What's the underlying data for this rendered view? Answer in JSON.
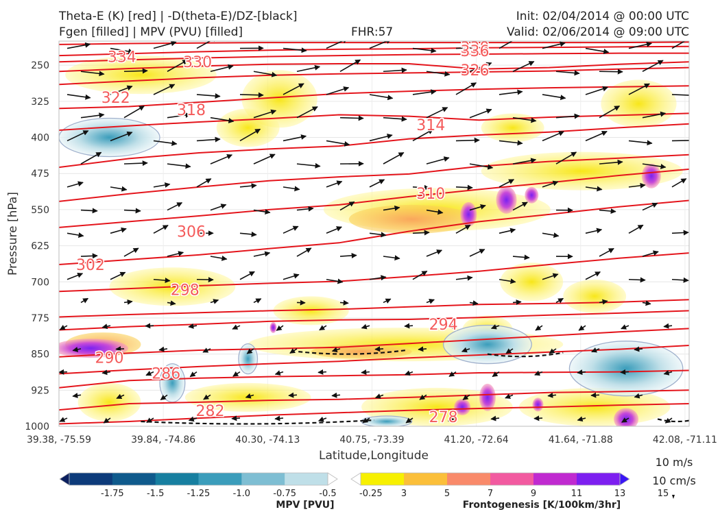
{
  "header": {
    "title_left_1": "Theta-E (K) [red] | -D(theta-E)/DZ-[black]",
    "title_left_2": "Fgen [filled] | MPV (PVU) [filled]",
    "title_center": "FHR:57",
    "title_right_1": "Init: 02/04/2014 @ 00:00 UTC",
    "title_right_2": "Valid: 02/06/2014 @ 09:00 UTC"
  },
  "chart_data": {
    "type": "cross-section",
    "xlabel": "Latitude,Longitude",
    "ylabel": "Pressure [hPa]",
    "ylim": [
      1000,
      200
    ],
    "grid": true,
    "y_ticks": [
      250,
      325,
      400,
      475,
      550,
      625,
      700,
      775,
      850,
      925,
      1000
    ],
    "x_ticks": [
      "39.38, -75.59",
      "39.84, -74.86",
      "40.30, -74.13",
      "40.75, -73.39",
      "41.20, -72.64",
      "41.64, -71.88",
      "42.08, -71.11"
    ],
    "theta_e_labels": [
      {
        "text": "334",
        "x": 0.1,
        "y": 232
      },
      {
        "text": "330",
        "x": 0.22,
        "y": 243
      },
      {
        "text": "322",
        "x": 0.09,
        "y": 317
      },
      {
        "text": "318",
        "x": 0.21,
        "y": 342
      },
      {
        "text": "306",
        "x": 0.21,
        "y": 595
      },
      {
        "text": "302",
        "x": 0.05,
        "y": 664
      },
      {
        "text": "298",
        "x": 0.2,
        "y": 716
      },
      {
        "text": "290",
        "x": 0.08,
        "y": 857
      },
      {
        "text": "286",
        "x": 0.17,
        "y": 890
      },
      {
        "text": "282",
        "x": 0.24,
        "y": 967
      },
      {
        "text": "338",
        "x": 0.66,
        "y": 213
      },
      {
        "text": "336",
        "x": 0.66,
        "y": 220
      },
      {
        "text": "326",
        "x": 0.66,
        "y": 260
      },
      {
        "text": "314",
        "x": 0.59,
        "y": 374
      },
      {
        "text": "310",
        "x": 0.59,
        "y": 516
      },
      {
        "text": "294",
        "x": 0.61,
        "y": 788
      },
      {
        "text": "278",
        "x": 0.61,
        "y": 980
      }
    ],
    "theta_e_lines": [
      {
        "value": 338,
        "p": [
          207,
          205,
          204,
          203,
          203,
          203,
          203,
          203,
          203,
          202
        ]
      },
      {
        "value": 334,
        "p": [
          230,
          226,
          222,
          219,
          217,
          216,
          214,
          213,
          212,
          211
        ]
      },
      {
        "value": 330,
        "p": [
          243,
          239,
          235,
          232,
          230,
          228,
          227,
          226,
          225,
          225
        ]
      },
      {
        "value": 326,
        "p": [
          263,
          257,
          252,
          248,
          247,
          247,
          258,
          255,
          248,
          243
        ]
      },
      {
        "value": 322,
        "p": [
          290,
          283,
          276,
          271,
          268,
          266,
          264,
          262,
          258,
          255
        ]
      },
      {
        "value": 318,
        "p": [
          340,
          336,
          327,
          318,
          309,
          304,
          300,
          297,
          295,
          293
        ]
      },
      {
        "value": 314,
        "p": [
          385,
          376,
          368,
          361,
          353,
          356,
          364,
          358,
          354,
          350
        ]
      },
      {
        "value": 310,
        "p": [
          462,
          444,
          432,
          424,
          418,
          403,
          395,
          389,
          380,
          372
        ]
      },
      {
        "value": 306,
        "p": [
          533,
          517,
          503,
          490,
          482,
          476,
          460,
          450,
          443,
          436
        ]
      },
      {
        "value": 302,
        "p": [
          587,
          575,
          563,
          550,
          540,
          523,
          508,
          494,
          479,
          466
        ]
      },
      {
        "value": 298,
        "p": [
          664,
          654,
          644,
          631,
          619,
          595,
          575,
          560,
          544,
          531
        ]
      },
      {
        "value": 294,
        "p": [
          720,
          714,
          708,
          703,
          699,
          689,
          678,
          664,
          651,
          640
        ]
      },
      {
        "value": 290,
        "p": [
          773,
          768,
          764,
          760,
          757,
          752,
          747,
          745,
          742,
          737
        ]
      },
      {
        "value": 286,
        "p": [
          800,
          793,
          788,
          782,
          779,
          778,
          774,
          769,
          765,
          760
        ]
      },
      {
        "value": 282,
        "p": [
          856,
          848,
          842,
          839,
          836,
          828,
          820,
          812,
          804,
          797
        ]
      },
      {
        "value": 278,
        "p": [
          891,
          883,
          876,
          870,
          865,
          858,
          852,
          846,
          840,
          832
        ]
      }
    ],
    "theta_e_lines_lower": [
      {
        "value": 298,
        "p": [
          920,
          905,
          900,
          897,
          895,
          893,
          889,
          888,
          887,
          884
        ]
      },
      {
        "value": 294,
        "p": [
          966,
          953,
          950,
          946,
          944,
          940,
          935,
          930,
          928,
          925
        ]
      },
      {
        "value": 290,
        "p": [
          995,
          990,
          983,
          977,
          972,
          967,
          963,
          960,
          956,
          953
        ]
      }
    ],
    "mpv_colorbar": {
      "title": "MPV [PVU]",
      "ticks": [
        "-1.75",
        "-1.5",
        "-1.25",
        "-1.0",
        "-0.75",
        "-0.5",
        "-0.25"
      ],
      "colors": [
        "#0b1f5e",
        "#0d3b7a",
        "#0f5a8c",
        "#177fa0",
        "#3b9dbb",
        "#7ebed3",
        "#bfdfe8",
        "#ffffff"
      ]
    },
    "fgen_colorbar": {
      "title": "Frontogenesis [K/100km/3hr]",
      "ticks": [
        "3",
        "5",
        "7",
        "9",
        "11",
        "13",
        "15"
      ],
      "colors": [
        "#ffffff",
        "#f7f000",
        "#fbbf3a",
        "#f98a6a",
        "#f25aa0",
        "#c02ad0",
        "#7d1ff0",
        "#3a16f5"
      ]
    },
    "vector_reference": {
      "label_1": "10 m/s",
      "label_2": "10 cm/s"
    }
  }
}
